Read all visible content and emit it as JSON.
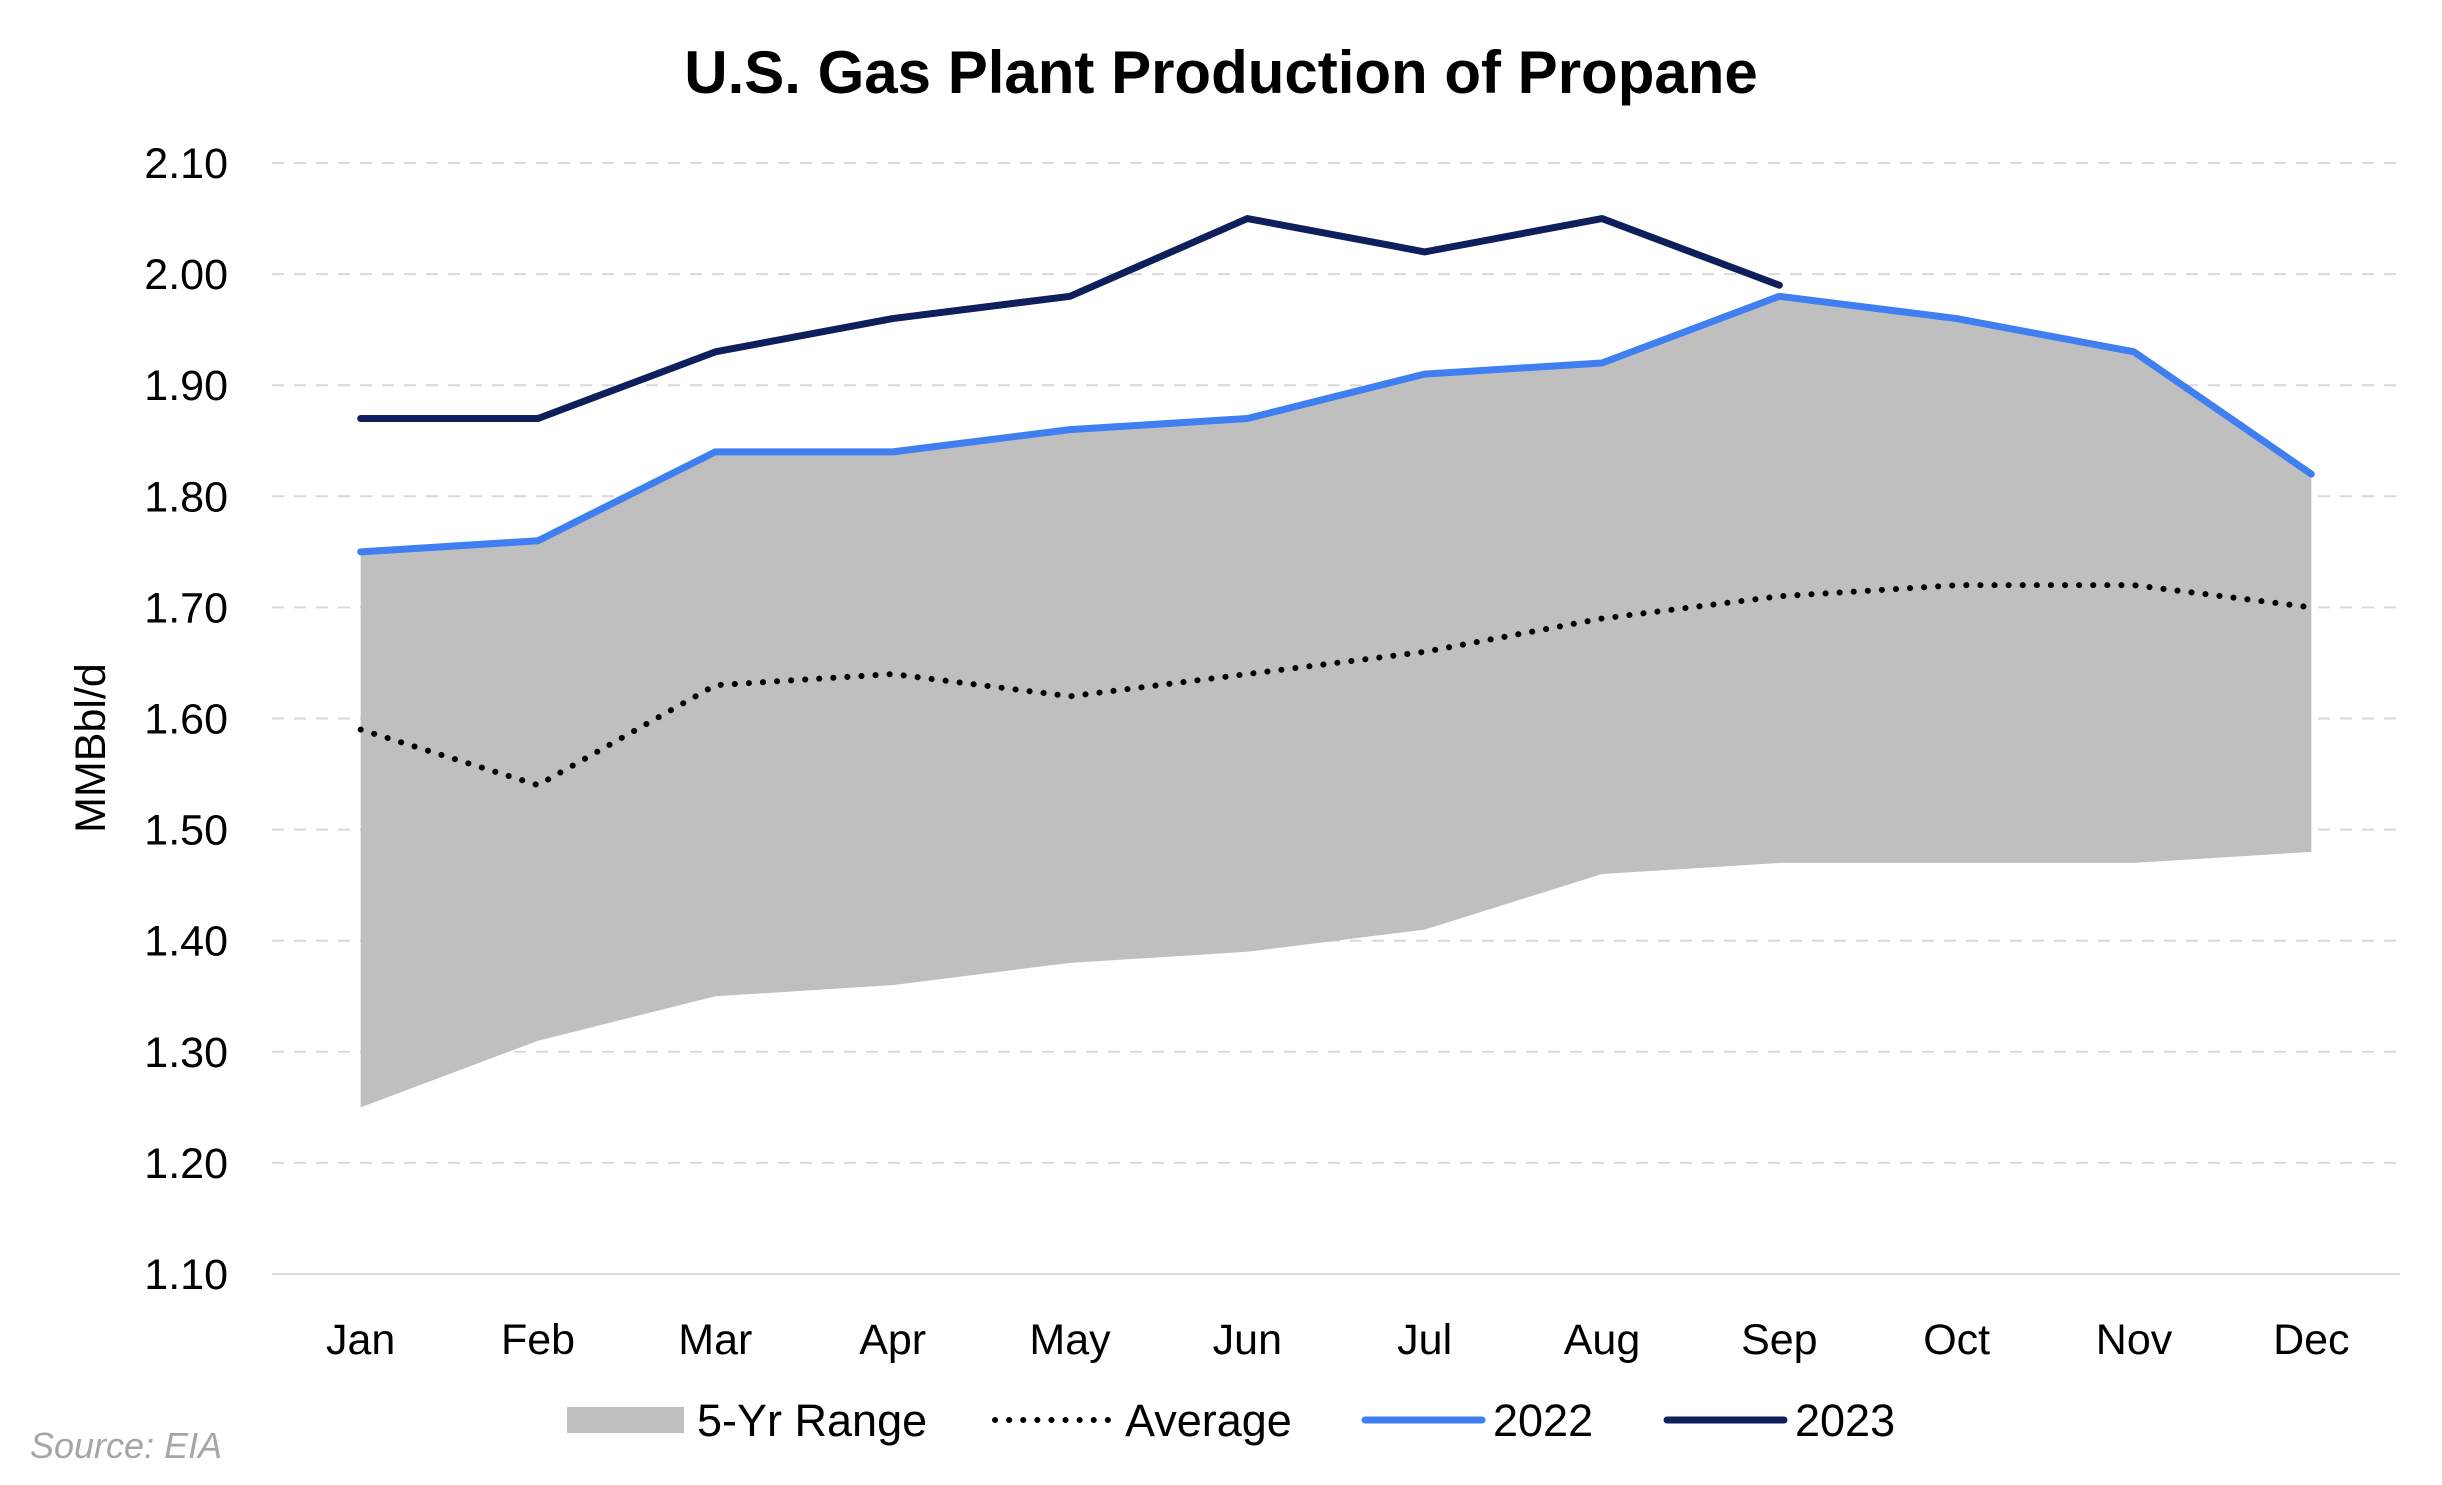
{
  "chart_data": {
    "type": "line",
    "title": "U.S. Gas Plant Production of Propane",
    "xlabel": "",
    "ylabel": "MMBbl/d",
    "ylim": [
      1.1,
      2.1
    ],
    "ytick_step": 0.1,
    "yticks": [
      "1.10",
      "1.20",
      "1.30",
      "1.40",
      "1.50",
      "1.60",
      "1.70",
      "1.80",
      "1.90",
      "2.00",
      "2.10"
    ],
    "grid": "horizontal dashed",
    "legend_position": "bottom",
    "categories": [
      "Jan",
      "Feb",
      "Mar",
      "Apr",
      "May",
      "Jun",
      "Jul",
      "Aug",
      "Sep",
      "Oct",
      "Nov",
      "Dec"
    ],
    "range": {
      "name": "5-Yr Range",
      "color": "#bfbfbf",
      "low": [
        1.25,
        1.31,
        1.35,
        1.36,
        1.38,
        1.39,
        1.41,
        1.46,
        1.47,
        1.47,
        1.47,
        1.48
      ],
      "high": [
        1.75,
        1.76,
        1.84,
        1.84,
        1.86,
        1.87,
        1.91,
        1.92,
        1.98,
        1.96,
        1.93,
        1.82
      ]
    },
    "series": [
      {
        "name": "Average",
        "style": "dotted",
        "color": "#000000",
        "values": [
          1.59,
          1.54,
          1.63,
          1.64,
          1.62,
          1.64,
          1.66,
          1.69,
          1.71,
          1.72,
          1.72,
          1.7
        ]
      },
      {
        "name": "2022",
        "style": "solid",
        "color": "#3f7ff2",
        "values": [
          1.75,
          1.76,
          1.84,
          1.84,
          1.86,
          1.87,
          1.91,
          1.92,
          1.98,
          1.96,
          1.93,
          1.82
        ]
      },
      {
        "name": "2023",
        "style": "solid",
        "color": "#0e1f5c",
        "values": [
          1.87,
          1.87,
          1.93,
          1.96,
          1.98,
          2.05,
          2.02,
          2.05,
          1.99,
          null,
          null,
          null
        ]
      }
    ],
    "source": "Source: EIA"
  }
}
